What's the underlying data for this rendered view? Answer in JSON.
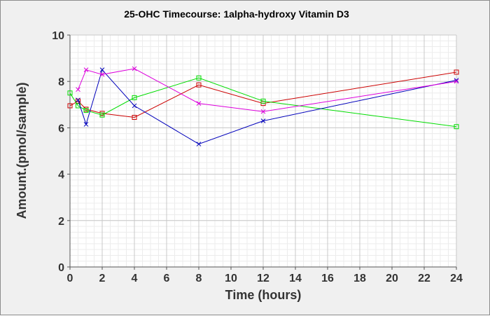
{
  "chart_data": {
    "type": "line",
    "title": "25-OHC Timecourse: 1alpha-hydroxy Vitamin D3",
    "xlabel": "Time (hours)",
    "ylabel": "Amount.(pmol/sample)",
    "xlim": [
      0,
      24
    ],
    "ylim": [
      0,
      10
    ],
    "xticks": [
      0,
      2,
      4,
      6,
      8,
      10,
      12,
      14,
      16,
      18,
      20,
      22,
      24
    ],
    "yticks": [
      0,
      2,
      4,
      6,
      8,
      10
    ],
    "minor_x_step": 0.5,
    "minor_y_step": 0.25,
    "grid": true,
    "series": [
      {
        "name": "red",
        "color": "#cc0000",
        "marker": "square",
        "x": [
          0,
          0.5,
          1,
          2,
          4,
          8,
          12,
          24
        ],
        "y": [
          6.95,
          7.15,
          6.8,
          6.62,
          6.45,
          7.85,
          7.05,
          8.4
        ]
      },
      {
        "name": "green",
        "color": "#00dd00",
        "marker": "square",
        "x": [
          0,
          0.5,
          1,
          2,
          4,
          8,
          12,
          24
        ],
        "y": [
          7.5,
          6.95,
          6.75,
          6.55,
          7.3,
          8.15,
          7.15,
          6.05
        ]
      },
      {
        "name": "blue",
        "color": "#0000bb",
        "marker": "x",
        "x": [
          0.5,
          1,
          2,
          4,
          8,
          12,
          24
        ],
        "y": [
          7.2,
          6.15,
          8.5,
          6.95,
          5.3,
          6.3,
          8.05
        ]
      },
      {
        "name": "magenta",
        "color": "#dd00dd",
        "marker": "x",
        "x": [
          0.5,
          1,
          2,
          4,
          8,
          12,
          24
        ],
        "y": [
          7.65,
          8.5,
          8.3,
          8.55,
          7.05,
          6.7,
          8.0
        ]
      }
    ]
  }
}
